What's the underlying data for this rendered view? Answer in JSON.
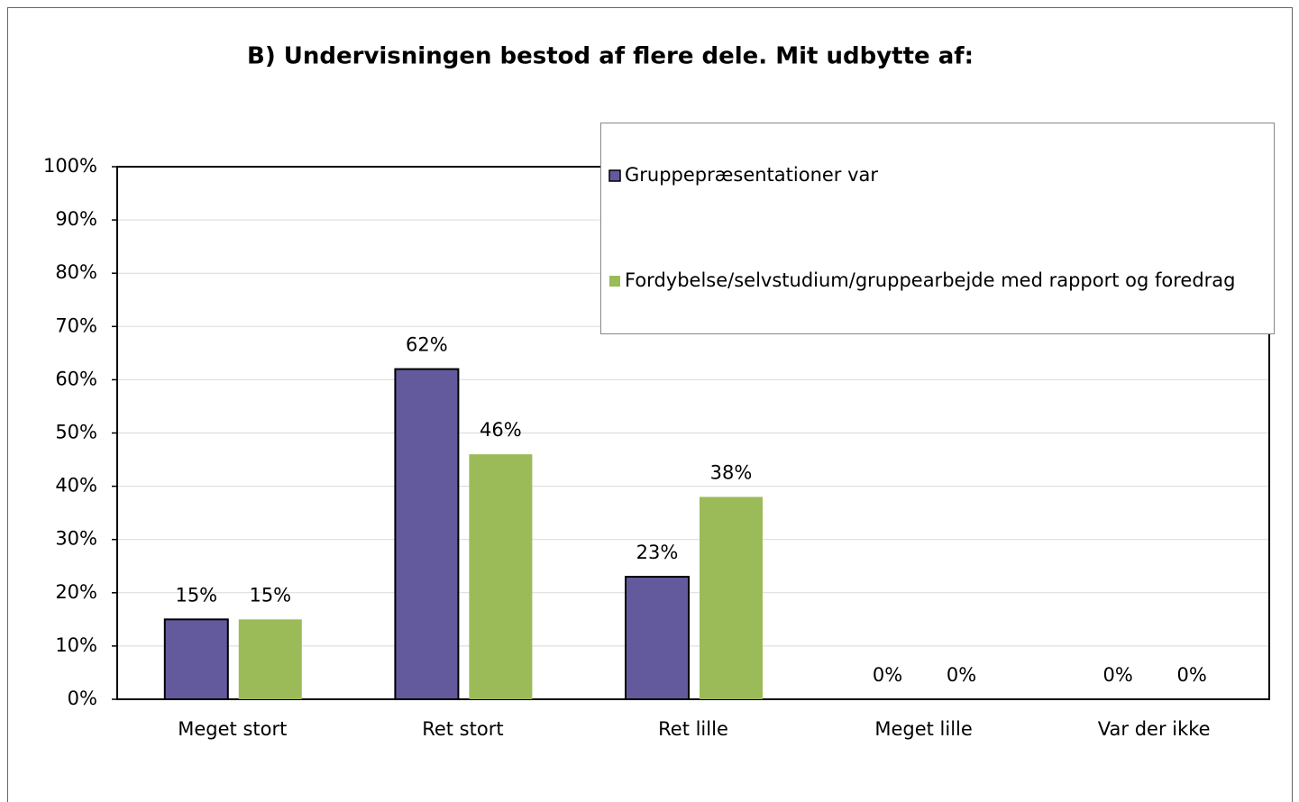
{
  "chart_data": {
    "type": "bar",
    "title": "B) Undervisningen bestod af flere dele. Mit udbytte af:",
    "categories": [
      "Meget stort",
      "Ret stort",
      "Ret lille",
      "Meget lille",
      "Var der ikke"
    ],
    "series": [
      {
        "name": "Gruppepræsentationer var",
        "color": "#635a9e",
        "values": [
          15,
          62,
          23,
          0,
          0
        ],
        "value_labels": [
          "15%",
          "62%",
          "23%",
          "0%",
          "0%"
        ]
      },
      {
        "name": "Fordybelse/selvstudium/gruppearbejde med rapport og foredrag",
        "color": "#9bbb59",
        "values": [
          15,
          46,
          38,
          0,
          0
        ],
        "value_labels": [
          "15%",
          "46%",
          "38%",
          "0%",
          "0%"
        ]
      }
    ],
    "ylim": [
      0,
      100
    ],
    "yticks": [
      {
        "value": 0,
        "label": "0%"
      },
      {
        "value": 10,
        "label": "10%"
      },
      {
        "value": 20,
        "label": "20%"
      },
      {
        "value": 30,
        "label": "30%"
      },
      {
        "value": 40,
        "label": "40%"
      },
      {
        "value": 50,
        "label": "50%"
      },
      {
        "value": 60,
        "label": "60%"
      },
      {
        "value": 70,
        "label": "70%"
      },
      {
        "value": 80,
        "label": "80%"
      },
      {
        "value": 90,
        "label": "90%"
      },
      {
        "value": 100,
        "label": "100%"
      }
    ],
    "grid": true,
    "legend": "upper right"
  }
}
